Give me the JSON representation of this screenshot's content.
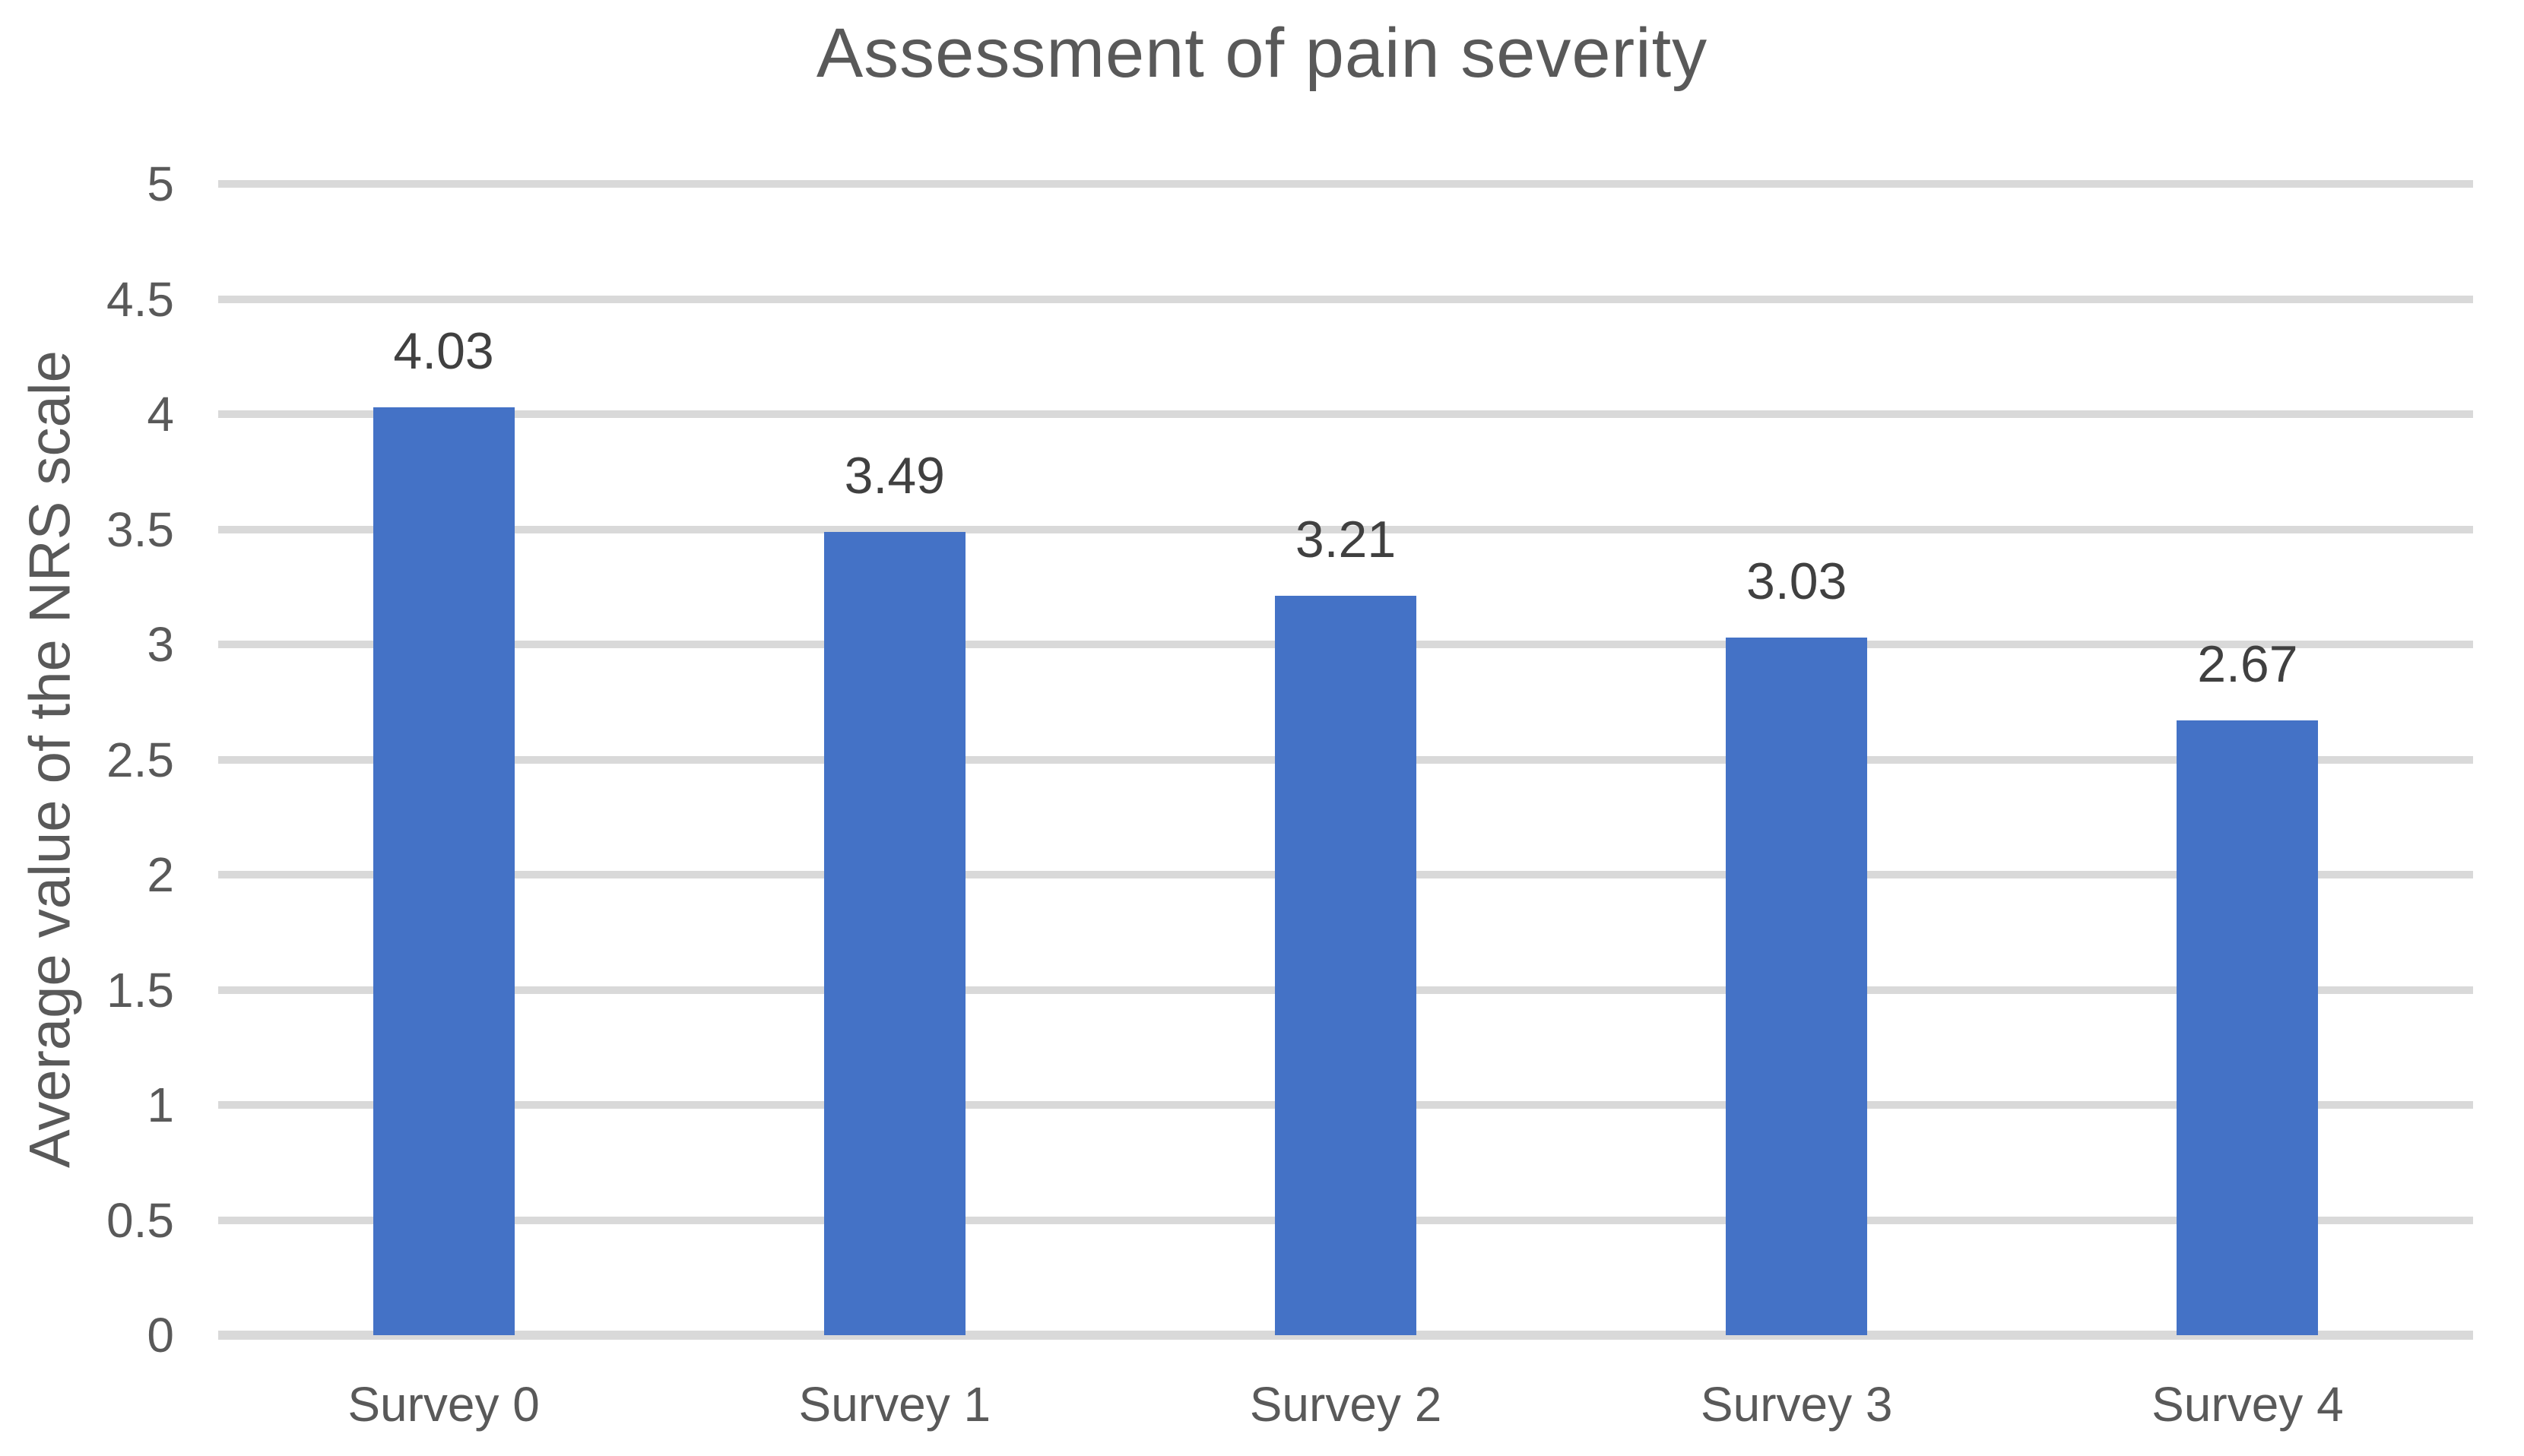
{
  "chart_data": {
    "type": "bar",
    "title": "Assessment of pain severity",
    "xlabel": "",
    "ylabel": "Average value of the NRS scale",
    "categories": [
      "Survey 0",
      "Survey 1",
      "Survey 2",
      "Survey 3",
      "Survey 4"
    ],
    "values": [
      4.03,
      3.49,
      3.21,
      3.03,
      2.67
    ],
    "value_labels": [
      "4.03",
      "3.49",
      "3.21",
      "3.03",
      "2.67"
    ],
    "ylim": [
      0,
      5
    ],
    "ytick_step": 0.5,
    "ytick_labels": [
      "5",
      "4.5",
      "4",
      "3.5",
      "3",
      "2.5",
      "2",
      "1.5",
      "1",
      "0.5",
      "0"
    ],
    "grid": "horizontal",
    "legend": "none",
    "data_labels": "above-bars",
    "colors": {
      "bar": "#4472C6",
      "gridline": "#D9D9D9",
      "baseline": "#D9D9D9",
      "title_text": "#595959",
      "axis_text": "#595959",
      "data_label_text": "#404040",
      "background": "#FFFFFF"
    }
  }
}
